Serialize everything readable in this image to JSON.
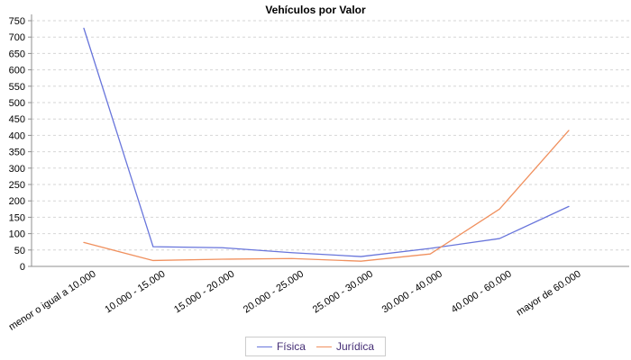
{
  "chart_data": {
    "type": "line",
    "title": "Vehículos por Valor",
    "categories": [
      "menor o igual a 10.000",
      "10.000 - 15.000",
      "15.000 - 20.000",
      "20.000 - 25.000",
      "25.000 - 30.000",
      "30.000 - 40.000",
      "40.000 - 60.000",
      "mayor de 60.000"
    ],
    "series": [
      {
        "name": "Física",
        "color": "#6875DB",
        "values": [
          727,
          60,
          57,
          42,
          30,
          55,
          85,
          183
        ]
      },
      {
        "name": "Jurídica",
        "color": "#F0905E",
        "values": [
          73,
          18,
          22,
          24,
          16,
          38,
          175,
          415
        ]
      }
    ],
    "ylim": [
      0,
      750
    ],
    "y_tick_step": 50,
    "grid": "horizontal-dashed",
    "legend_position": "bottom",
    "colors": {
      "gridline": "#d6d6d6",
      "axis": "#8f8f8f",
      "tick_text": "#000000",
      "legend_text": "#432C74",
      "legend_border": "#cccccc",
      "title_text": "#000000"
    }
  }
}
